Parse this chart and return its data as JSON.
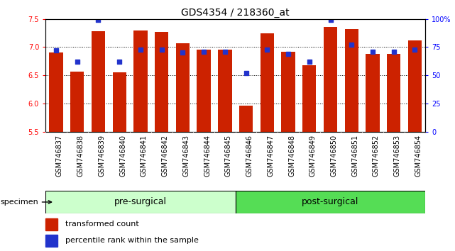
{
  "title": "GDS4354 / 218360_at",
  "samples": [
    "GSM746837",
    "GSM746838",
    "GSM746839",
    "GSM746840",
    "GSM746841",
    "GSM746842",
    "GSM746843",
    "GSM746844",
    "GSM746845",
    "GSM746846",
    "GSM746847",
    "GSM746848",
    "GSM746849",
    "GSM746850",
    "GSM746851",
    "GSM746852",
    "GSM746853",
    "GSM746854"
  ],
  "red_values": [
    6.9,
    6.57,
    7.28,
    6.55,
    7.29,
    7.27,
    7.07,
    6.95,
    6.96,
    5.96,
    7.24,
    6.92,
    6.68,
    7.36,
    7.32,
    6.88,
    6.88,
    7.12
  ],
  "blue_pct": [
    72,
    62,
    99,
    62,
    73,
    73,
    70,
    71,
    71,
    52,
    73,
    69,
    62,
    99,
    77,
    71,
    71,
    73
  ],
  "ylim_left": [
    5.5,
    7.5
  ],
  "ylim_right": [
    0,
    100
  ],
  "yticks_left": [
    5.5,
    6.0,
    6.5,
    7.0,
    7.5
  ],
  "ytick_labels_right": [
    "0",
    "25",
    "50",
    "75",
    "100%"
  ],
  "group1_label": "pre-surgical",
  "group2_label": "post-surgical",
  "group1_count": 9,
  "group2_count": 9,
  "specimen_label": "specimen",
  "legend1": "transformed count",
  "legend2": "percentile rank within the sample",
  "bar_color": "#cc2200",
  "dot_color": "#2233cc",
  "group1_color": "#ccffcc",
  "group2_color": "#55dd55",
  "tick_bg_color": "#c8c8c8",
  "bar_bottom": 5.5,
  "bar_width": 0.65,
  "title_fontsize": 10,
  "tick_fontsize": 7,
  "label_fontsize": 8
}
